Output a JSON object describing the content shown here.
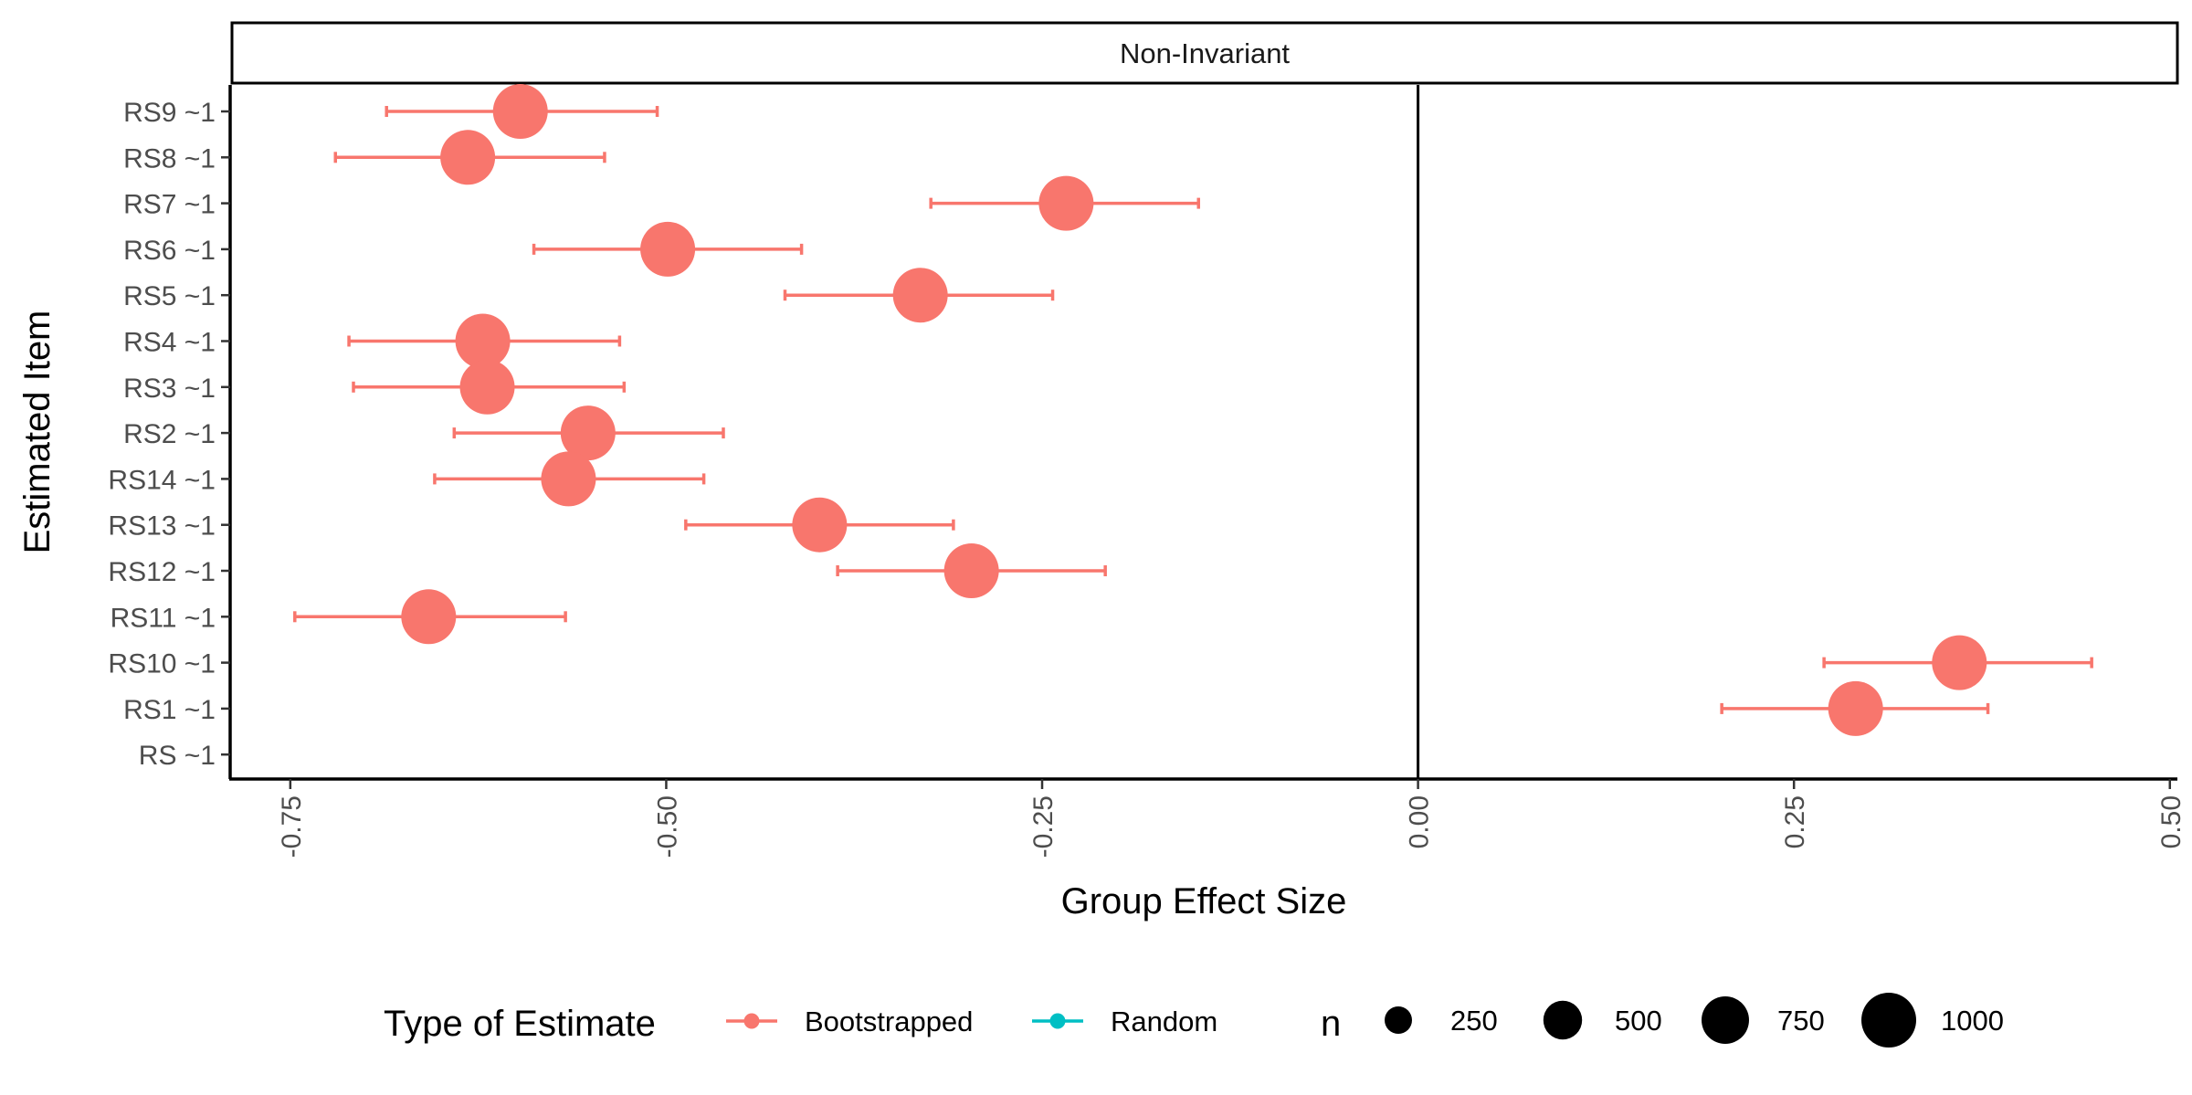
{
  "chart_data": {
    "type": "scatter",
    "panel_title": "Non-Invariant",
    "xlabel": "Group Effect Size",
    "ylabel": "Estimated Item",
    "xlim": [
      -0.79,
      0.505
    ],
    "x_ticks": [
      -0.75,
      -0.5,
      -0.25,
      0.0,
      0.25,
      0.5
    ],
    "x_tick_labels": [
      "-0.75",
      "-0.50",
      "-0.25",
      "0.00",
      "0.25",
      "0.50"
    ],
    "categories": [
      "RS9 ~1",
      "RS8 ~1",
      "RS7 ~1",
      "RS6 ~1",
      "RS5 ~1",
      "RS4 ~1",
      "RS3 ~1",
      "RS2 ~1",
      "RS14 ~1",
      "RS13 ~1",
      "RS12 ~1",
      "RS11 ~1",
      "RS10 ~1",
      "RS1 ~1",
      "RS ~1"
    ],
    "reference_line_x": 0.0,
    "grid": false,
    "series": [
      {
        "name": "Bootstrapped",
        "color": "#F8766D",
        "points": [
          {
            "item": "RS9 ~1",
            "x": -0.597,
            "lo": -0.686,
            "hi": -0.506,
            "n": 1000
          },
          {
            "item": "RS8 ~1",
            "x": -0.632,
            "lo": -0.72,
            "hi": -0.541,
            "n": 1000
          },
          {
            "item": "RS7 ~1",
            "x": -0.234,
            "lo": -0.324,
            "hi": -0.146,
            "n": 1000
          },
          {
            "item": "RS6 ~1",
            "x": -0.499,
            "lo": -0.588,
            "hi": -0.41,
            "n": 1000
          },
          {
            "item": "RS5 ~1",
            "x": -0.331,
            "lo": -0.421,
            "hi": -0.243,
            "n": 1000
          },
          {
            "item": "RS4 ~1",
            "x": -0.622,
            "lo": -0.711,
            "hi": -0.531,
            "n": 1000
          },
          {
            "item": "RS3 ~1",
            "x": -0.619,
            "lo": -0.708,
            "hi": -0.528,
            "n": 1000
          },
          {
            "item": "RS2 ~1",
            "x": -0.552,
            "lo": -0.641,
            "hi": -0.462,
            "n": 1000
          },
          {
            "item": "RS14 ~1",
            "x": -0.565,
            "lo": -0.654,
            "hi": -0.475,
            "n": 1000
          },
          {
            "item": "RS13 ~1",
            "x": -0.398,
            "lo": -0.487,
            "hi": -0.309,
            "n": 1000
          },
          {
            "item": "RS12 ~1",
            "x": -0.297,
            "lo": -0.386,
            "hi": -0.208,
            "n": 1000
          },
          {
            "item": "RS11 ~1",
            "x": -0.658,
            "lo": -0.747,
            "hi": -0.567,
            "n": 1000
          },
          {
            "item": "RS10 ~1",
            "x": 0.36,
            "lo": 0.27,
            "hi": 0.448,
            "n": 1000
          },
          {
            "item": "RS1 ~1",
            "x": 0.291,
            "lo": 0.202,
            "hi": 0.379,
            "n": 1000
          }
        ]
      },
      {
        "name": "Random",
        "color": "#00BFC4",
        "points": []
      }
    ],
    "legend": {
      "position": "bottom",
      "type_title": "Type of Estimate",
      "type_items": [
        {
          "label": "Bootstrapped",
          "color": "#F8766D"
        },
        {
          "label": "Random",
          "color": "#00BFC4"
        }
      ],
      "size_title": "n",
      "size_items": [
        {
          "label": "250",
          "value": 250
        },
        {
          "label": "500",
          "value": 500
        },
        {
          "label": "750",
          "value": 750
        },
        {
          "label": "1000",
          "value": 1000
        }
      ]
    }
  }
}
